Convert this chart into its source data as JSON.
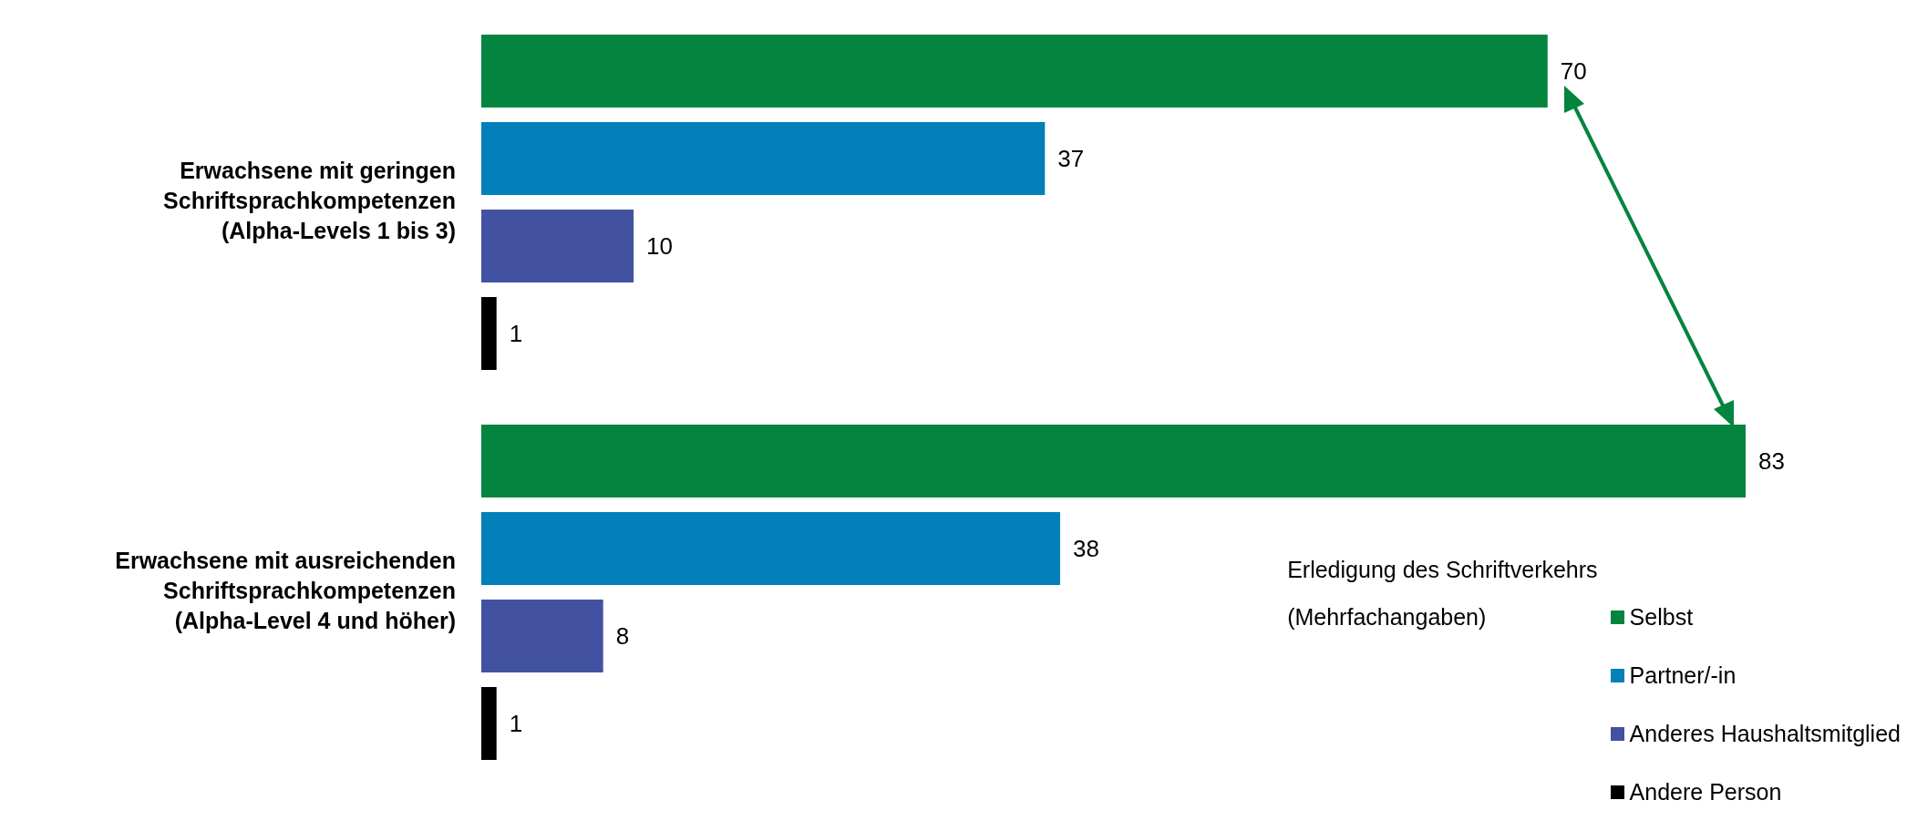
{
  "chart_data": {
    "type": "bar",
    "orientation": "horizontal",
    "categories": [
      "Erwachsene mit geringen\nSchriftsprachkompetenzen\n(Alpha-Levels 1 bis 3)",
      "Erwachsene mit ausreichenden\nSchriftsprachkompetenzen\n(Alpha-Level 4 und höher)"
    ],
    "series": [
      {
        "name": "Selbst",
        "color": "#03843f",
        "values": [
          70,
          83
        ]
      },
      {
        "name": "Partner/-in",
        "color": "#0280b9",
        "values": [
          37,
          38
        ]
      },
      {
        "name": "Anderes Haushaltsmitglied",
        "color": "#4352a0",
        "values": [
          10,
          8
        ]
      },
      {
        "name": "Andere Person",
        "color": "#000000",
        "values": [
          1,
          1
        ]
      }
    ],
    "legend_title": "Erledigung des Schriftverkehrs\n(Mehrfachangaben)",
    "legend": "bottom right",
    "data_labels": true
  }
}
